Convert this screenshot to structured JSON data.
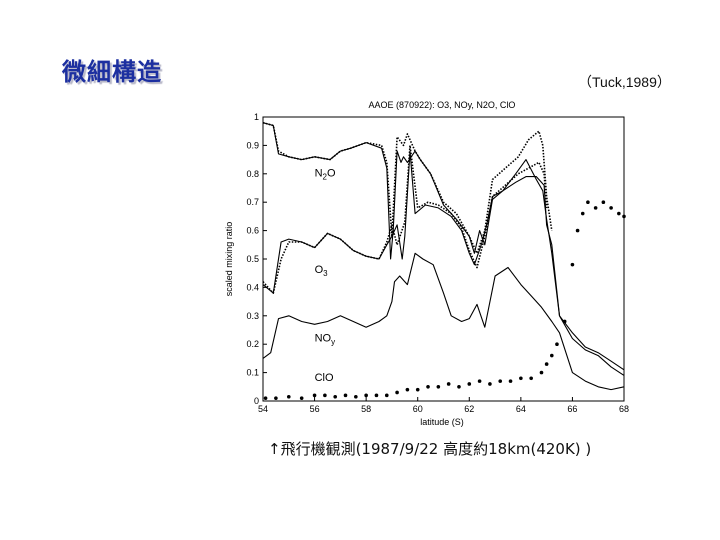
{
  "slide": {
    "title": "微細構造",
    "citation": "（Tuck,1989）",
    "caption": "↑飛行機観測(1987/9/22 高度約18km(420K) )"
  },
  "colors": {
    "title": "#1c2fa0",
    "plot": "#000000"
  },
  "chart_data": {
    "type": "line",
    "title": "AAOE (870922): O3, NOy, N2O, ClO",
    "xlabel": "latitude (S)",
    "ylabel": "scaled mixing ratio",
    "xlim": [
      54,
      68
    ],
    "ylim": [
      0,
      1
    ],
    "xticks": [
      54,
      56,
      58,
      60,
      62,
      64,
      66,
      68
    ],
    "yticks": [
      0,
      0.1,
      0.2,
      0.3,
      0.4,
      0.5,
      0.6,
      0.7,
      0.8,
      0.9,
      1
    ],
    "grid": false,
    "annotations": [
      {
        "text": "N",
        "sub": "2",
        "after": "O",
        "x": 56.0,
        "y": 0.79
      },
      {
        "text": "O",
        "sub": "3",
        "after": "",
        "x": 56.0,
        "y": 0.45
      },
      {
        "text": "NO",
        "sub": "y",
        "after": "",
        "x": 56.0,
        "y": 0.21
      },
      {
        "text": "ClO",
        "sub": "",
        "after": "",
        "x": 56.0,
        "y": 0.07
      }
    ],
    "series": [
      {
        "style": "solid",
        "x": [
          54.0,
          54.4,
          54.6,
          55.0,
          55.5,
          56.0,
          56.6,
          57.0,
          57.4,
          58.0,
          58.6,
          58.8,
          58.95,
          59.05,
          59.2,
          59.35,
          59.45,
          59.6,
          59.9,
          60.1,
          60.5,
          61.0,
          61.5,
          62.0,
          62.2,
          62.4,
          62.6,
          62.9,
          63.3,
          63.8,
          64.2,
          64.6,
          64.85,
          65.0,
          65.2,
          65.5,
          66.0,
          66.5,
          67.0,
          67.5,
          68.0
        ],
        "y": [
          0.98,
          0.97,
          0.87,
          0.86,
          0.85,
          0.86,
          0.85,
          0.88,
          0.89,
          0.91,
          0.89,
          0.82,
          0.5,
          0.6,
          0.88,
          0.84,
          0.86,
          0.84,
          0.88,
          0.85,
          0.8,
          0.69,
          0.64,
          0.58,
          0.52,
          0.6,
          0.55,
          0.71,
          0.74,
          0.8,
          0.85,
          0.78,
          0.74,
          0.64,
          0.52,
          0.3,
          0.24,
          0.19,
          0.17,
          0.14,
          0.11
        ]
      },
      {
        "style": "dotted",
        "x": [
          54.0,
          54.4,
          54.6,
          55.0,
          55.5,
          56.0,
          56.6,
          57.0,
          57.4,
          58.0,
          58.6,
          58.8,
          59.0,
          59.2,
          59.45,
          59.6,
          59.9,
          60.1,
          60.5,
          61.0,
          61.5,
          62.0,
          62.3,
          62.6,
          62.9,
          63.4,
          63.9,
          64.3,
          64.7,
          64.85,
          65.0,
          65.2
        ],
        "y": [
          0.98,
          0.97,
          0.88,
          0.86,
          0.85,
          0.86,
          0.85,
          0.88,
          0.89,
          0.91,
          0.9,
          0.84,
          0.58,
          0.93,
          0.9,
          0.94,
          0.88,
          0.85,
          0.8,
          0.7,
          0.66,
          0.58,
          0.52,
          0.6,
          0.78,
          0.82,
          0.86,
          0.92,
          0.95,
          0.9,
          0.72,
          0.6
        ]
      },
      {
        "style": "solid",
        "x": [
          54.0,
          54.4,
          54.7,
          55.0,
          55.5,
          56.0,
          56.5,
          57.0,
          57.5,
          58.0,
          58.5,
          58.8,
          59.0,
          59.2,
          59.4,
          59.5,
          59.7,
          59.9,
          60.3,
          60.8,
          61.3,
          61.7,
          62.0,
          62.2,
          62.5,
          62.7,
          62.9,
          63.3,
          63.8,
          64.2,
          64.6,
          64.9,
          65.0,
          65.2,
          65.5,
          66.0,
          66.5,
          67.0,
          67.5,
          68.0
        ],
        "y": [
          0.41,
          0.38,
          0.56,
          0.57,
          0.56,
          0.54,
          0.59,
          0.57,
          0.53,
          0.51,
          0.5,
          0.55,
          0.58,
          0.62,
          0.5,
          0.58,
          0.88,
          0.66,
          0.69,
          0.68,
          0.65,
          0.6,
          0.52,
          0.48,
          0.56,
          0.63,
          0.72,
          0.74,
          0.77,
          0.79,
          0.79,
          0.76,
          0.62,
          0.55,
          0.3,
          0.22,
          0.18,
          0.16,
          0.12,
          0.09
        ]
      },
      {
        "style": "dotted",
        "x": [
          54.0,
          54.4,
          54.7,
          55.0,
          55.5,
          56.0,
          56.5,
          57.0,
          57.5,
          58.0,
          58.5,
          58.8,
          59.0,
          59.2,
          59.5,
          59.7,
          60.0,
          60.4,
          60.8,
          61.3,
          61.7,
          62.0,
          62.3,
          62.6,
          62.9,
          63.4,
          63.9,
          64.3,
          64.7,
          64.9,
          65.0
        ],
        "y": [
          0.42,
          0.38,
          0.5,
          0.56,
          0.56,
          0.54,
          0.59,
          0.57,
          0.53,
          0.51,
          0.5,
          0.56,
          0.62,
          0.55,
          0.63,
          0.9,
          0.68,
          0.7,
          0.69,
          0.66,
          0.61,
          0.53,
          0.47,
          0.58,
          0.72,
          0.76,
          0.8,
          0.82,
          0.84,
          0.8,
          0.68
        ]
      },
      {
        "style": "solid",
        "x": [
          54.0,
          54.3,
          54.6,
          55.0,
          55.5,
          56.0,
          56.5,
          57.0,
          57.5,
          58.0,
          58.5,
          58.8,
          59.0,
          59.1,
          59.3,
          59.6,
          59.9,
          60.2,
          60.6,
          61.0,
          61.3,
          61.7,
          62.0,
          62.3,
          62.6,
          63.0,
          63.5,
          64.0,
          64.4,
          64.8,
          65.2,
          65.5,
          66.0,
          66.5,
          67.0,
          67.5,
          68.0
        ],
        "y": [
          0.15,
          0.17,
          0.29,
          0.3,
          0.28,
          0.27,
          0.28,
          0.3,
          0.28,
          0.26,
          0.28,
          0.3,
          0.35,
          0.42,
          0.44,
          0.41,
          0.52,
          0.5,
          0.48,
          0.38,
          0.3,
          0.28,
          0.29,
          0.34,
          0.26,
          0.44,
          0.47,
          0.41,
          0.37,
          0.33,
          0.28,
          0.24,
          0.1,
          0.07,
          0.05,
          0.04,
          0.05
        ]
      },
      {
        "style": "scatter",
        "x": [
          54.1,
          54.5,
          55.0,
          55.5,
          56.0,
          56.4,
          56.8,
          57.2,
          57.6,
          58.0,
          58.4,
          58.8,
          59.2,
          59.6,
          60.0,
          60.4,
          60.8,
          61.2,
          61.6,
          62.0,
          62.4,
          62.8,
          63.2,
          63.6,
          64.0,
          64.4,
          64.8,
          65.0,
          65.2,
          65.4,
          65.7,
          66.0,
          66.2,
          66.4,
          66.6,
          66.9,
          67.2,
          67.5,
          67.8,
          68.0
        ],
        "y": [
          0.01,
          0.01,
          0.015,
          0.01,
          0.02,
          0.02,
          0.015,
          0.02,
          0.015,
          0.02,
          0.02,
          0.02,
          0.03,
          0.04,
          0.04,
          0.05,
          0.05,
          0.06,
          0.05,
          0.06,
          0.07,
          0.06,
          0.07,
          0.07,
          0.08,
          0.08,
          0.1,
          0.13,
          0.16,
          0.2,
          0.28,
          0.48,
          0.6,
          0.66,
          0.7,
          0.68,
          0.7,
          0.68,
          0.66,
          0.65
        ]
      }
    ]
  }
}
